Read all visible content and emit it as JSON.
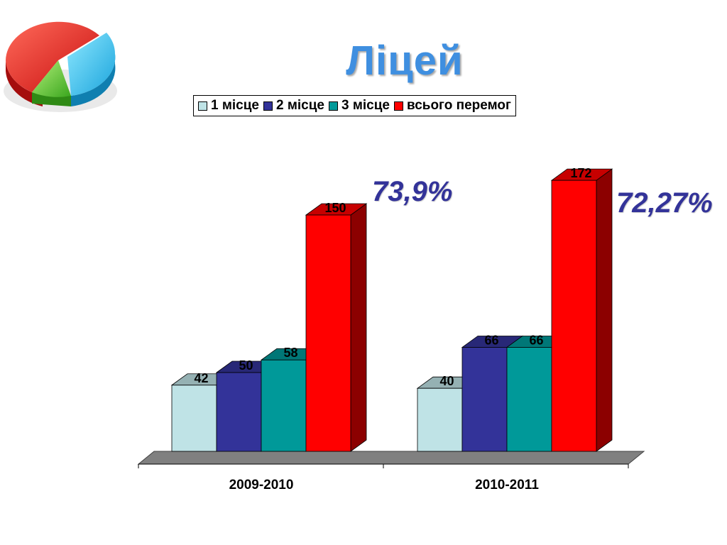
{
  "title": "Ліцей",
  "colors": {
    "title": "#3f8fe0",
    "percent_text": "#333399",
    "series": [
      "#bfe3e6",
      "#333399",
      "#009999",
      "#ff0000"
    ]
  },
  "logo": {
    "icon": "pie-chart-3d-icon"
  },
  "chart_data": {
    "type": "bar",
    "style": "3d-clustered-column",
    "categories": [
      "2009-2010",
      "2010-2011"
    ],
    "series": [
      {
        "name": "1 місце",
        "values": [
          42,
          40
        ]
      },
      {
        "name": "2 місце",
        "values": [
          50,
          66
        ]
      },
      {
        "name": "3 місце",
        "values": [
          58,
          66
        ]
      },
      {
        "name": "всього перемог",
        "values": [
          150,
          172
        ]
      }
    ],
    "data_labels": true,
    "legend_position": "top",
    "grid": false,
    "ylim": [
      0,
      172
    ],
    "annotations": [
      "73,9%",
      "72,27%"
    ]
  }
}
